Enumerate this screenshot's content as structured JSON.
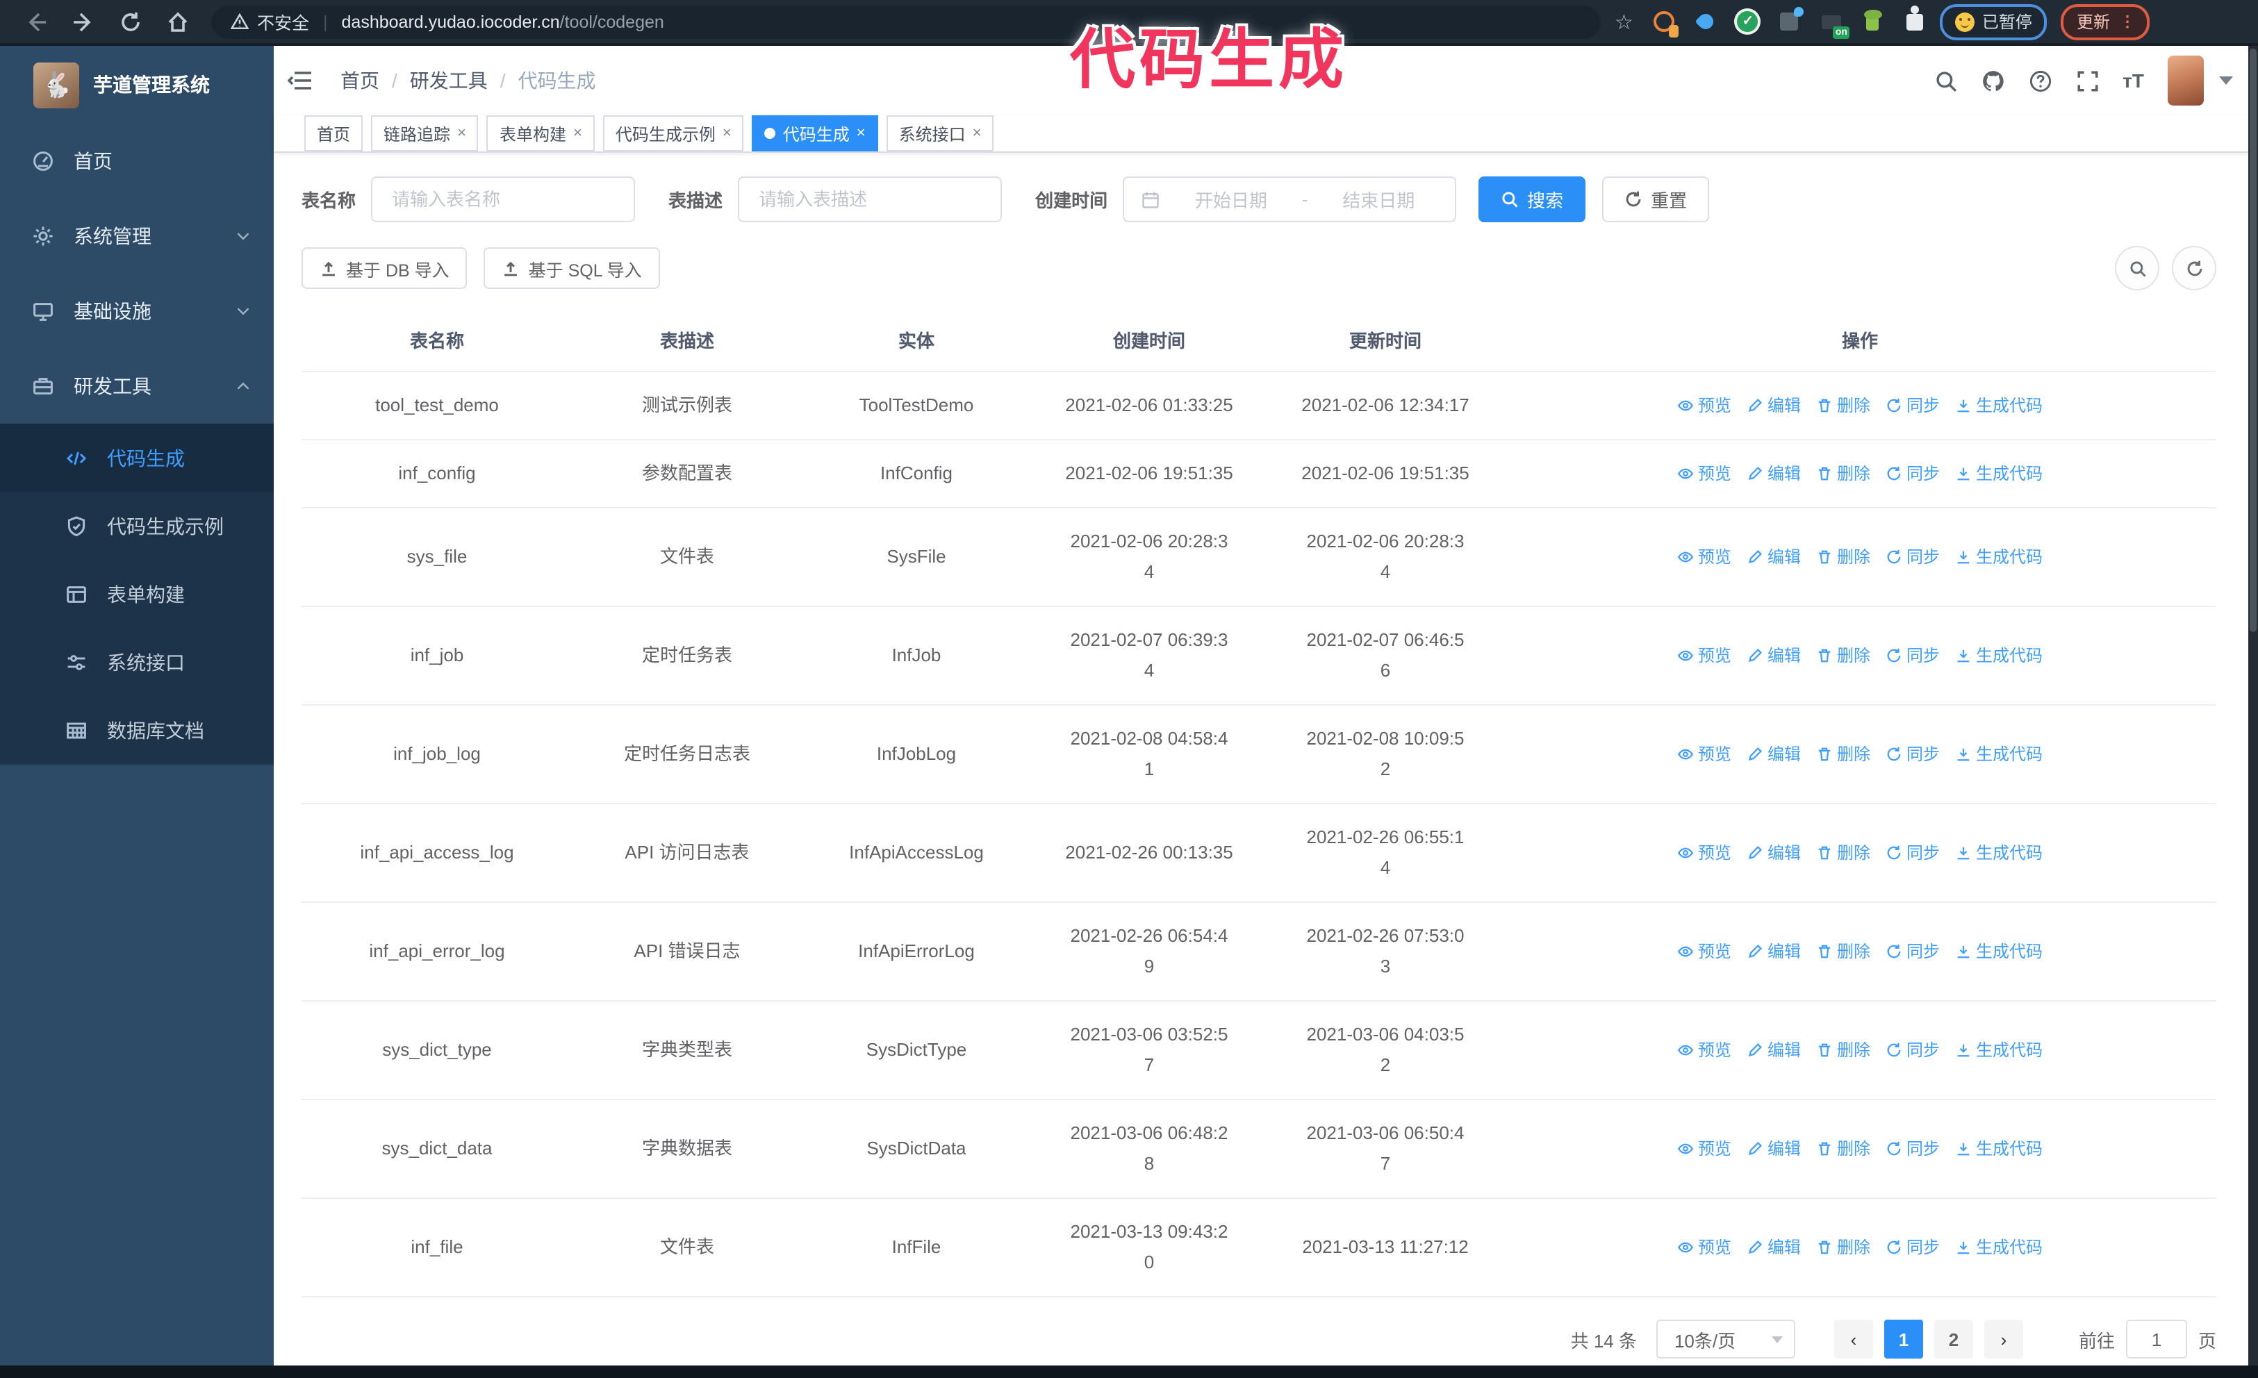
{
  "browser": {
    "security_label": "不安全",
    "url_host": "dashboard.yudao.iocoder.cn",
    "url_path": "/tool/codegen",
    "ext_on_badge": "on",
    "paused_badge": "已暂停",
    "update_badge": "更新"
  },
  "overlay_title": "代码生成",
  "sidebar": {
    "logo_title": "芋道管理系统",
    "items": [
      {
        "label": "首页",
        "icon": "dashboard-icon",
        "chevron": null
      },
      {
        "label": "系统管理",
        "icon": "gear-icon",
        "chevron": "down"
      },
      {
        "label": "基础设施",
        "icon": "monitor-icon",
        "chevron": "down"
      },
      {
        "label": "研发工具",
        "icon": "toolbox-icon",
        "chevron": "up"
      }
    ],
    "submenu": [
      {
        "label": "代码生成",
        "icon": "code-icon",
        "active": true
      },
      {
        "label": "代码生成示例",
        "icon": "shield-icon",
        "active": false
      },
      {
        "label": "表单构建",
        "icon": "form-icon",
        "active": false
      },
      {
        "label": "系统接口",
        "icon": "sliders-icon",
        "active": false
      },
      {
        "label": "数据库文档",
        "icon": "database-icon",
        "active": false
      }
    ]
  },
  "breadcrumb": [
    "首页",
    "研发工具",
    "代码生成"
  ],
  "tags": [
    {
      "label": "首页",
      "closable": false,
      "active": false
    },
    {
      "label": "链路追踪",
      "closable": true,
      "active": false
    },
    {
      "label": "表单构建",
      "closable": true,
      "active": false
    },
    {
      "label": "代码生成示例",
      "closable": true,
      "active": false
    },
    {
      "label": "代码生成",
      "closable": true,
      "active": true
    },
    {
      "label": "系统接口",
      "closable": true,
      "active": false
    }
  ],
  "filters": {
    "name_label": "表名称",
    "name_placeholder": "请输入表名称",
    "desc_label": "表描述",
    "desc_placeholder": "请输入表描述",
    "time_label": "创建时间",
    "start_placeholder": "开始日期",
    "range_separator": "-",
    "end_placeholder": "结束日期",
    "search_label": "搜索",
    "reset_label": "重置"
  },
  "toolbar": {
    "db_import_label": "基于 DB 导入",
    "sql_import_label": "基于 SQL 导入"
  },
  "table": {
    "headers": [
      "表名称",
      "表描述",
      "实体",
      "创建时间",
      "更新时间",
      "操作"
    ],
    "op_labels": [
      {
        "label": "预览",
        "icon": "eye-icon"
      },
      {
        "label": "编辑",
        "icon": "edit-icon"
      },
      {
        "label": "删除",
        "icon": "delete-icon"
      },
      {
        "label": "同步",
        "icon": "sync-icon"
      },
      {
        "label": "生成代码",
        "icon": "download-icon"
      }
    ],
    "rows": [
      {
        "name": "tool_test_demo",
        "desc": "测试示例表",
        "entity": "ToolTestDemo",
        "created": "2021-02-06 01:33:25",
        "created_wrap": false,
        "updated": "2021-02-06 12:34:17",
        "updated_wrap": false
      },
      {
        "name": "inf_config",
        "desc": "参数配置表",
        "entity": "InfConfig",
        "created": "2021-02-06 19:51:35",
        "created_wrap": false,
        "updated": "2021-02-06 19:51:35",
        "updated_wrap": false
      },
      {
        "name": "sys_file",
        "desc": "文件表",
        "entity": "SysFile",
        "created": "2021-02-06 20:28:34",
        "created_wrap": true,
        "updated": "2021-02-06 20:28:34",
        "updated_wrap": true
      },
      {
        "name": "inf_job",
        "desc": "定时任务表",
        "entity": "InfJob",
        "created": "2021-02-07 06:39:34",
        "created_wrap": true,
        "updated": "2021-02-07 06:46:56",
        "updated_wrap": true
      },
      {
        "name": "inf_job_log",
        "desc": "定时任务日志表",
        "entity": "InfJobLog",
        "created": "2021-02-08 04:58:41",
        "created_wrap": true,
        "updated": "2021-02-08 10:09:52",
        "updated_wrap": true
      },
      {
        "name": "inf_api_access_log",
        "desc": "API 访问日志表",
        "entity": "InfApiAccessLog",
        "created": "2021-02-26 00:13:35",
        "created_wrap": false,
        "updated": "2021-02-26 06:55:14",
        "updated_wrap": true
      },
      {
        "name": "inf_api_error_log",
        "desc": "API 错误日志",
        "entity": "InfApiErrorLog",
        "created": "2021-02-26 06:54:49",
        "created_wrap": true,
        "updated": "2021-02-26 07:53:03",
        "updated_wrap": true
      },
      {
        "name": "sys_dict_type",
        "desc": "字典类型表",
        "entity": "SysDictType",
        "created": "2021-03-06 03:52:57",
        "created_wrap": true,
        "updated": "2021-03-06 04:03:52",
        "updated_wrap": true
      },
      {
        "name": "sys_dict_data",
        "desc": "字典数据表",
        "entity": "SysDictData",
        "created": "2021-03-06 06:48:28",
        "created_wrap": true,
        "updated": "2021-03-06 06:50:47",
        "updated_wrap": true
      },
      {
        "name": "inf_file",
        "desc": "文件表",
        "entity": "InfFile",
        "created": "2021-03-13 09:43:20",
        "created_wrap": true,
        "updated": "2021-03-13 11:27:12",
        "updated_wrap": false
      }
    ]
  },
  "pagination": {
    "total_label": "共 14 条",
    "page_size_label": "10条/页",
    "pages": [
      "1",
      "2"
    ],
    "active_page": "1",
    "goto_label": "前往",
    "goto_value": "1",
    "unit_label": "页"
  }
}
